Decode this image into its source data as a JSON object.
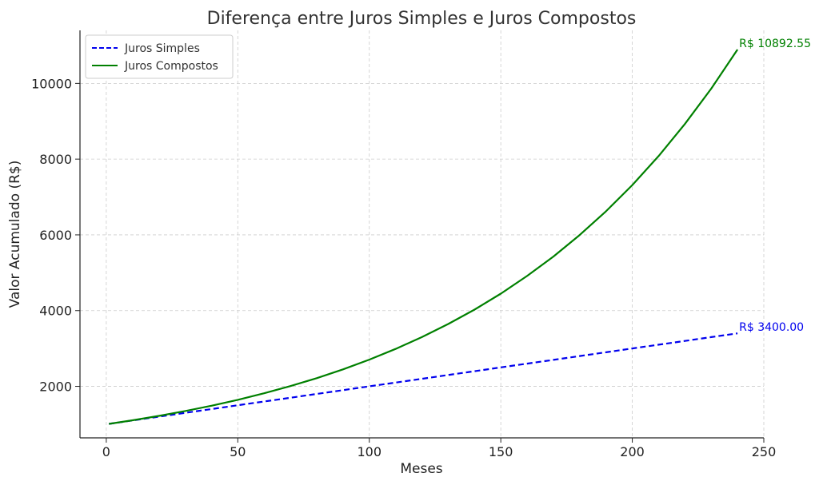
{
  "chart_data": {
    "type": "line",
    "title": "Diferença entre Juros Simples e Juros Compostos",
    "xlabel": "Meses",
    "ylabel": "Valor Acumulado (R$)",
    "xlim": [
      -10,
      250
    ],
    "ylim": [
      640,
      11400
    ],
    "xticks": [
      0,
      50,
      100,
      150,
      200,
      250
    ],
    "yticks": [
      2000,
      4000,
      6000,
      8000,
      10000
    ],
    "grid": true,
    "legend_position": "top-left",
    "x": [
      1,
      10,
      20,
      30,
      40,
      50,
      60,
      70,
      80,
      90,
      100,
      110,
      120,
      130,
      140,
      150,
      160,
      170,
      180,
      190,
      200,
      210,
      220,
      230,
      240
    ],
    "series": [
      {
        "name": "Juros Simples",
        "style": "dashed",
        "color": "#0000ee",
        "values": [
          1010,
          1100,
          1200,
          1300,
          1400,
          1500,
          1600,
          1700,
          1800,
          1900,
          2000,
          2100,
          2200,
          2300,
          2400,
          2500,
          2600,
          2700,
          2800,
          2900,
          3000,
          3100,
          3200,
          3300,
          3400
        ],
        "end_label": "R$ 3400.00"
      },
      {
        "name": "Juros Compostos",
        "style": "solid",
        "color": "#008000",
        "values": [
          1010,
          1105,
          1220,
          1348,
          1489,
          1645,
          1817,
          2007,
          2217,
          2449,
          2705,
          2988,
          3300,
          3646,
          4027,
          4448,
          4914,
          5428,
          5996,
          6623,
          7316,
          8081,
          8927,
          9860,
          10893
        ],
        "end_label": "R$ 10892.55"
      }
    ]
  }
}
